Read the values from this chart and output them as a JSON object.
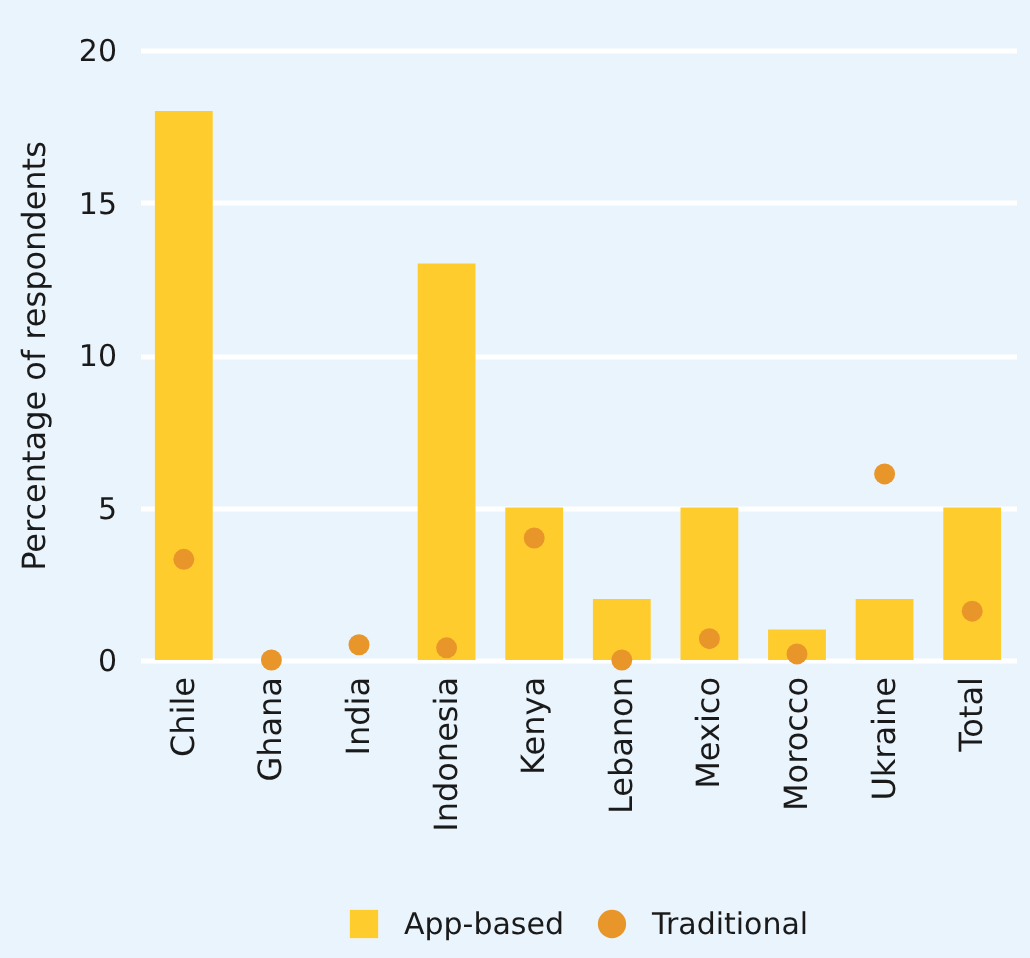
{
  "chart_data": {
    "type": "bar",
    "ylabel": "Percentage of respondents",
    "categories": [
      "Chile",
      "Ghana",
      "India",
      "Indonesia",
      "Kenya",
      "Lebanon",
      "Mexico",
      "Morocco",
      "Ukraine",
      "Total"
    ],
    "series": [
      {
        "name": "App-based",
        "color": "#ffcc2e",
        "values": [
          18,
          0,
          0,
          13,
          5,
          2,
          5,
          1,
          2,
          5
        ]
      },
      {
        "name": "Traditional",
        "type": "scatter",
        "marker": "circle",
        "color": "#e8962a",
        "x": [
          "Chile",
          "Ghana",
          "India",
          "Indonesia",
          "Kenya",
          "Lebanon",
          "Mexico",
          "Morocco",
          "Ukraine",
          "Total"
        ],
        "values": [
          3.3,
          0,
          0.5,
          0.4,
          4.0,
          0,
          0.7,
          0.2,
          6.1,
          1.6
        ]
      }
    ],
    "ylim": [
      0,
      20
    ],
    "yticks": [
      0,
      5,
      10,
      15,
      20
    ],
    "grid": "y",
    "legend": "bottom"
  }
}
